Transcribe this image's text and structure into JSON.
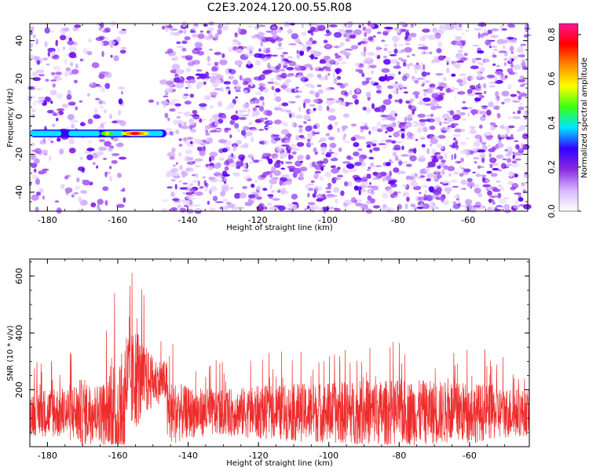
{
  "title": "C2E3.2024.120.00.55.R08",
  "colors": {
    "snr_line": "#ee2c2c",
    "colormap": [
      "#ffffff",
      "#d8b8ff",
      "#8a2be2",
      "#3300ff",
      "#00e5ff",
      "#39ff14",
      "#ffff00",
      "#ff8c00",
      "#ff0000",
      "#ff1493"
    ]
  },
  "chart_data": [
    {
      "type": "heatmap",
      "xlabel": "Height of straight line (km)",
      "ylabel": "Frequency (Hz)",
      "xlim": [
        -185,
        -43
      ],
      "ylim": [
        -50,
        49
      ],
      "x_ticks": [
        -180,
        -160,
        -140,
        -120,
        -100,
        -80,
        -60
      ],
      "y_ticks": [
        -40,
        -20,
        0,
        20,
        40
      ],
      "colorbar": {
        "label": "Normalized spectral amplitude",
        "range": [
          0,
          0.85
        ],
        "ticks": [
          0.0,
          0.2,
          0.4,
          0.6,
          0.8
        ]
      },
      "features": [
        {
          "description": "strong signal band",
          "x_range": [
            -185,
            -146
          ],
          "frequency": -9,
          "peak_x": -155,
          "peak_amplitude": 0.85
        },
        {
          "description": "empty gap",
          "x_range": [
            -158,
            -147
          ]
        }
      ]
    },
    {
      "type": "line",
      "series_color": "#ee2c2c",
      "xlabel": "Height of straight line (km)",
      "ylabel": "SNR (10 * v/v)",
      "xlim": [
        -185,
        -43
      ],
      "ylim": [
        0,
        660
      ],
      "x_ticks": [
        -180,
        -160,
        -140,
        -120,
        -100,
        -80,
        -60
      ],
      "y_ticks": [
        200,
        400,
        600
      ],
      "envelope_x": [
        -185,
        -175,
        -170,
        -165,
        -160,
        -157,
        -155,
        -153,
        -150,
        -145,
        -140,
        -130,
        -120,
        -100,
        -80,
        -60,
        -43
      ],
      "envelope_max": [
        300,
        330,
        390,
        340,
        600,
        660,
        600,
        560,
        420,
        380,
        320,
        300,
        330,
        360,
        380,
        360,
        300
      ],
      "baseline": 120
    }
  ]
}
